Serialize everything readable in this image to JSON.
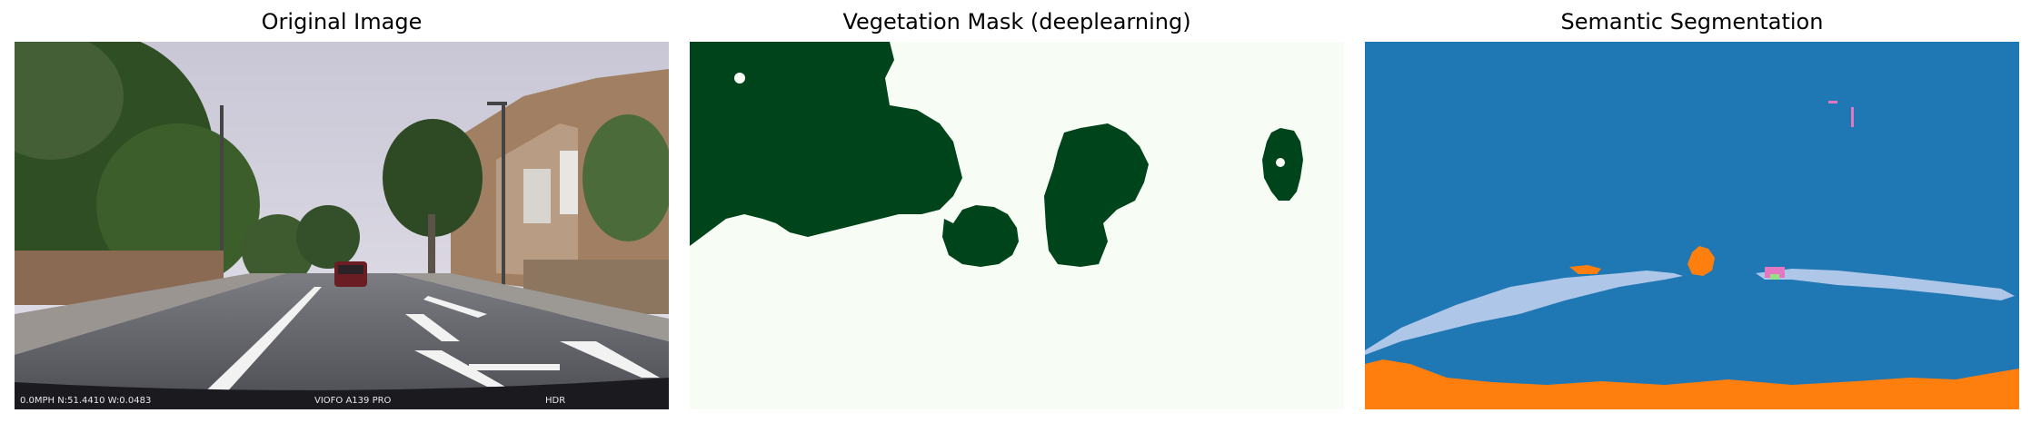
{
  "panels": [
    {
      "title": "Original Image"
    },
    {
      "title": "Vegetation Mask (deeplearning)"
    },
    {
      "title": "Semantic Segmentation"
    }
  ],
  "dashcam": {
    "speed_coords": "0.0MPH  N:51.4410  W:0.0483",
    "model": "VIOFO A139 PRO",
    "mode": "HDR"
  },
  "colors": {
    "vegetation": "#00441b",
    "mask_background": "#f7fcf5",
    "seg_blue": "#1f77b4",
    "seg_light_blue": "#aec7e8",
    "seg_orange": "#ff7f0e",
    "seg_pink": "#e377c2"
  }
}
